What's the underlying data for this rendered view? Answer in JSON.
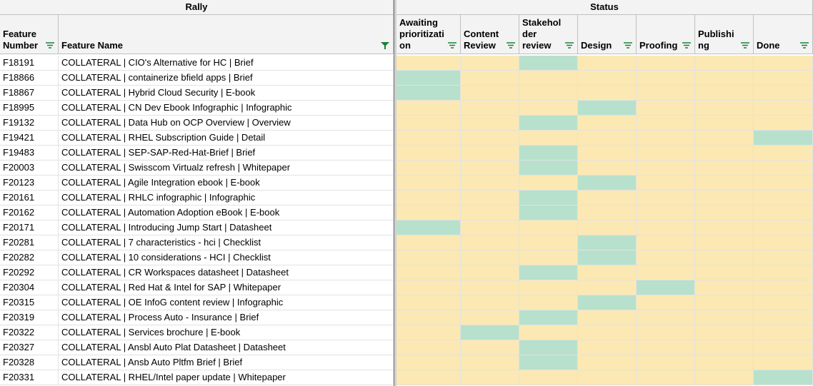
{
  "groups": [
    "Rally",
    "Status"
  ],
  "columns": [
    "Feature Number",
    "Feature Name"
  ],
  "status_columns": [
    "Awaiting prioritization",
    "Content Review",
    "Stakeholder review",
    "Design",
    "Proofing",
    "Publishing",
    "Done"
  ],
  "rows": [
    {
      "number": "F18191",
      "name": "COLLATERAL | CIO's Alternative for HC | Brief",
      "status": 2
    },
    {
      "number": "F18866",
      "name": "COLLATERAL | containerize bfield apps | Brief",
      "status": 0
    },
    {
      "number": "F18867",
      "name": "COLLATERAL | Hybrid Cloud Security | E-book",
      "status": 0
    },
    {
      "number": "F18995",
      "name": "COLLATERAL | CN Dev Ebook Infographic | Infographic",
      "status": 3
    },
    {
      "number": "F19132",
      "name": "COLLATERAL | Data Hub on OCP Overview | Overview",
      "status": 2
    },
    {
      "number": "F19421",
      "name": "COLLATERAL | RHEL Subscription Guide | Detail",
      "status": 6
    },
    {
      "number": "F19483",
      "name": "COLLATERAL | SEP-SAP-Red-Hat-Brief | Brief",
      "status": 2
    },
    {
      "number": "F20003",
      "name": "COLLATERAL | Swisscom Virtualz refresh | Whitepaper",
      "status": 2
    },
    {
      "number": "F20123",
      "name": "COLLATERAL | Agile Integration ebook | E-book",
      "status": 3
    },
    {
      "number": "F20161",
      "name": "COLLATERAL | RHLC infographic | Infographic",
      "status": 2
    },
    {
      "number": "F20162",
      "name": "COLLATERAL | Automation Adoption eBook | E-book",
      "status": 2
    },
    {
      "number": "F20171",
      "name": "COLLATERAL | Introducing Jump Start | Datasheet",
      "status": 0
    },
    {
      "number": "F20281",
      "name": "COLLATERAL | 7 characteristics - hci | Checklist",
      "status": 3
    },
    {
      "number": "F20282",
      "name": "COLLATERAL | 10 considerations - HCI | Checklist",
      "status": 3
    },
    {
      "number": "F20292",
      "name": "COLLATERAL | CR Workspaces datasheet | Datasheet",
      "status": 2
    },
    {
      "number": "F20304",
      "name": "COLLATERAL | Red Hat & Intel for SAP  | Whitepaper",
      "status": 4
    },
    {
      "number": "F20315",
      "name": "COLLATERAL | OE InfoG content review | Infographic",
      "status": 3
    },
    {
      "number": "F20319",
      "name": "COLLATERAL | Process Auto - Insurance | Brief",
      "status": 2
    },
    {
      "number": "F20322",
      "name": "COLLATERAL | Services brochure | E-book",
      "status": 1
    },
    {
      "number": "F20327",
      "name": "COLLATERAL | Ansbl Auto Plat Datasheet | Datasheet",
      "status": 2
    },
    {
      "number": "F20328",
      "name": "COLLATERAL | Ansb Auto Pltfm Brief | Brief",
      "status": 2
    },
    {
      "number": "F20331",
      "name": "COLLATERAL | RHEL/Intel paper update | Whitepaper",
      "status": 6
    }
  ]
}
